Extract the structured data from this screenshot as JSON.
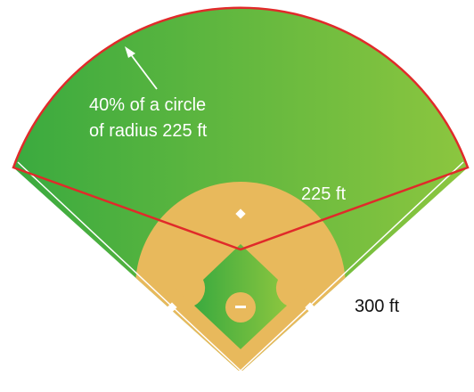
{
  "labels": {
    "sector_line1": "40% of a circle",
    "sector_line2": "of radius 225 ft",
    "radius": "225 ft",
    "foul_line": "300 ft"
  }
}
